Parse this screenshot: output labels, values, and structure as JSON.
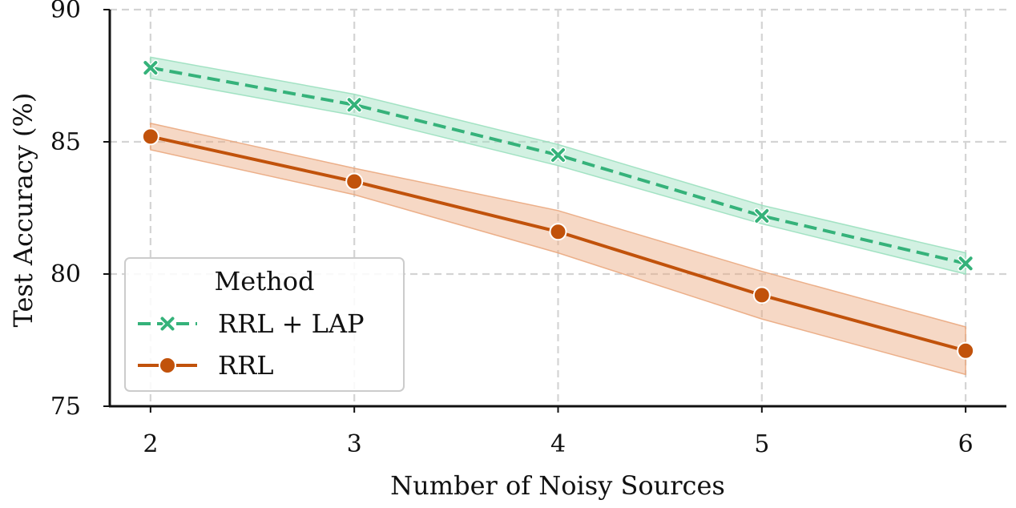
{
  "chart_data": {
    "type": "line",
    "title": "",
    "xlabel": "Number of Noisy Sources",
    "ylabel": "Test Accuracy (%)",
    "x": [
      2,
      3,
      4,
      5,
      6
    ],
    "xlim": [
      1.8,
      6.2
    ],
    "ylim": [
      75,
      90
    ],
    "yticks": [
      75,
      80,
      85,
      90
    ],
    "xticks": [
      2,
      3,
      4,
      5,
      6
    ],
    "grid": true,
    "legend": {
      "title": "Method",
      "placement": "lower-left"
    },
    "series": [
      {
        "name": "RRL + LAP",
        "values": [
          87.8,
          86.4,
          84.5,
          82.2,
          80.4
        ],
        "lower": [
          87.4,
          86.0,
          84.1,
          81.9,
          80.0
        ],
        "upper": [
          88.2,
          86.8,
          84.9,
          82.6,
          80.8
        ],
        "color": "#35b27a",
        "band_color": "#9be0bf",
        "line_style": "dashed",
        "marker": "x"
      },
      {
        "name": "RRL",
        "values": [
          85.2,
          83.5,
          81.6,
          79.2,
          77.1
        ],
        "lower": [
          84.7,
          83.0,
          80.8,
          78.3,
          76.2
        ],
        "upper": [
          85.7,
          84.0,
          82.4,
          80.1,
          78.0
        ],
        "color": "#c1520b",
        "band_color": "#eaa87f",
        "line_style": "solid",
        "marker": "o"
      }
    ]
  }
}
